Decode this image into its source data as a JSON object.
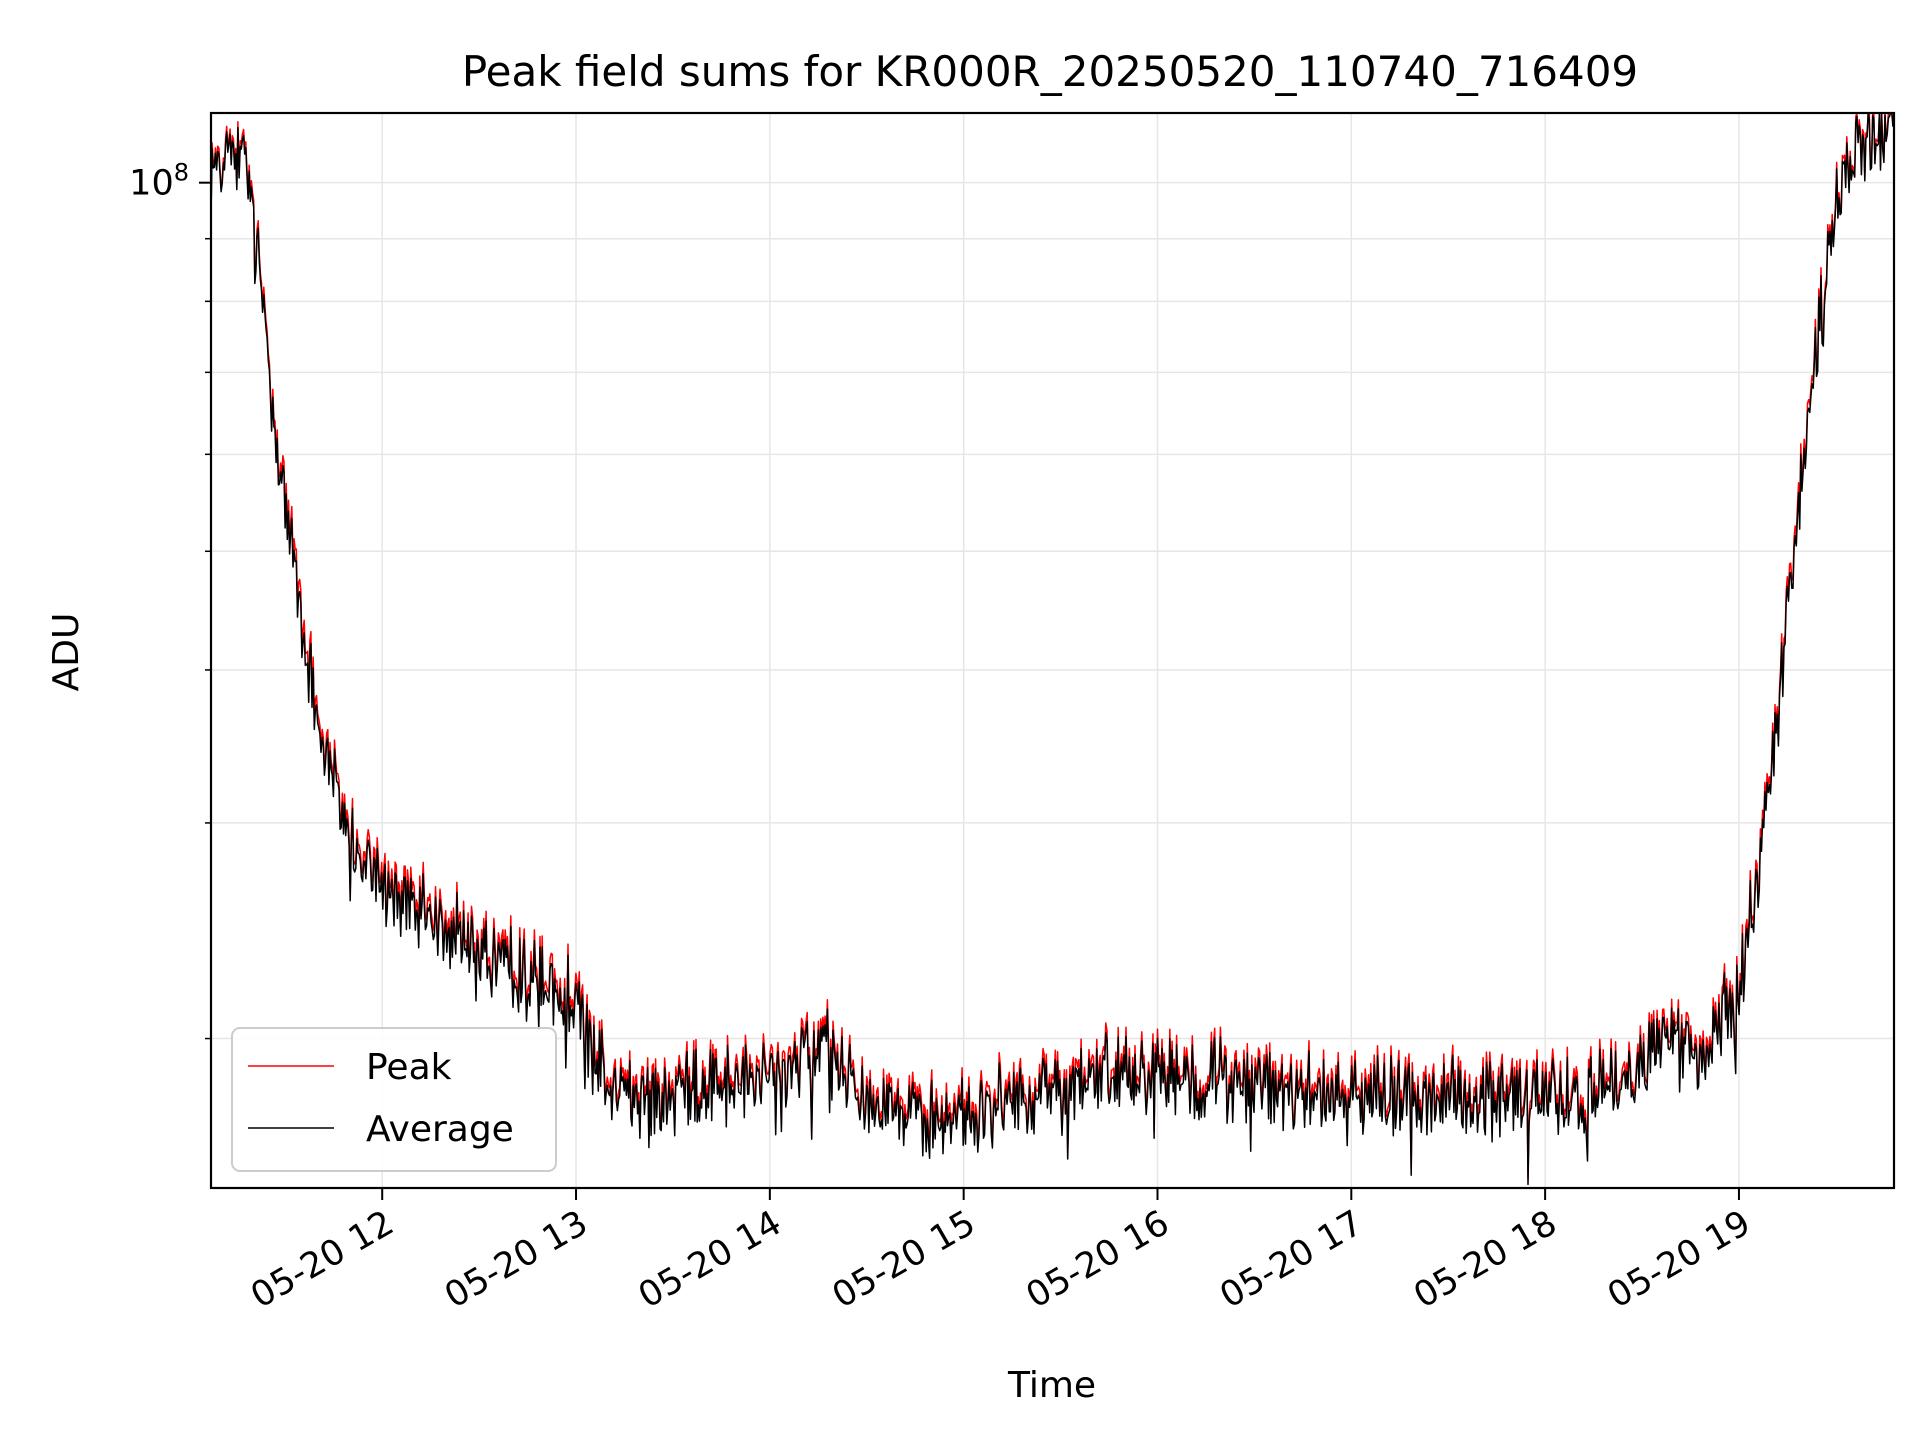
{
  "chart_data": {
    "type": "line",
    "title": "Peak field sums for KR000R_20250520_110740_716409",
    "xlabel": "Time",
    "ylabel": "ADU",
    "x_range": [
      "2025-05-20 11:07",
      "2025-05-20 19:48"
    ],
    "x_ticks": [
      "05-20 12",
      "05-20 13",
      "05-20 14",
      "05-20 15",
      "05-20 16",
      "05-20 17",
      "05-20 18",
      "05-20 19"
    ],
    "x_tick_hours": [
      12,
      13,
      14,
      15,
      16,
      17,
      18,
      19
    ],
    "y_scale": "log",
    "y_range": [
      15100000,
      114000000
    ],
    "y_major_tick": {
      "label": "10",
      "exponent": "8",
      "value": 100000000
    },
    "y_minor_ticks": [
      20000000,
      30000000,
      40000000,
      50000000,
      60000000,
      70000000,
      80000000,
      90000000
    ],
    "grid": true,
    "legend": {
      "placement": "lower-left"
    },
    "series": [
      {
        "name": "Peak",
        "color": "#ff0000",
        "hours": [
          11.12,
          11.2,
          11.3,
          11.4,
          11.5,
          11.6,
          11.7,
          11.8,
          11.9,
          12.0,
          12.2,
          12.4,
          12.6,
          12.8,
          13.0,
          13.1,
          13.3,
          13.5,
          13.7,
          13.9,
          14.1,
          14.3,
          14.5,
          14.7,
          14.9,
          15.1,
          15.3,
          15.5,
          15.7,
          15.9,
          16.1,
          16.3,
          16.5,
          16.7,
          16.9,
          17.1,
          17.3,
          17.5,
          17.7,
          17.9,
          18.1,
          18.3,
          18.5,
          18.6,
          18.7,
          18.8,
          18.9,
          19.0,
          19.1,
          19.2,
          19.3,
          19.4,
          19.5,
          19.6,
          19.7,
          19.8
        ],
        "values": [
          103000000,
          108000000,
          104000000,
          76000000,
          55000000,
          43000000,
          35000000,
          31000000,
          28500000,
          27000000,
          25800000,
          24600000,
          23500000,
          22500000,
          22000000,
          19500000,
          18200000,
          18400000,
          18700000,
          18600000,
          19200000,
          19900000,
          18400000,
          17600000,
          17400000,
          17800000,
          18200000,
          18500000,
          18900000,
          19200000,
          19000000,
          18900000,
          18600000,
          18400000,
          18300000,
          18200000,
          18300000,
          18200000,
          18100000,
          18300000,
          18100000,
          18400000,
          19300000,
          20600000,
          20200000,
          19300000,
          20800000,
          21800000,
          28500000,
          37000000,
          54000000,
          74000000,
          97000000,
          107000000,
          110000000,
          113000000
        ]
      },
      {
        "name": "Average",
        "color": "#000000",
        "hours": [
          11.12,
          11.2,
          11.3,
          11.4,
          11.5,
          11.6,
          11.7,
          11.8,
          11.9,
          12.0,
          12.2,
          12.4,
          12.6,
          12.8,
          13.0,
          13.1,
          13.3,
          13.5,
          13.7,
          13.9,
          14.1,
          14.3,
          14.5,
          14.7,
          14.9,
          15.1,
          15.3,
          15.5,
          15.7,
          15.9,
          16.1,
          16.3,
          16.5,
          16.7,
          16.9,
          17.1,
          17.3,
          17.5,
          17.7,
          17.9,
          18.1,
          18.3,
          18.5,
          18.6,
          18.7,
          18.8,
          18.9,
          19.0,
          19.1,
          19.2,
          19.3,
          19.4,
          19.5,
          19.6,
          19.7,
          19.8
        ],
        "values": [
          102000000,
          107000000,
          103000000,
          75000000,
          54000000,
          42000000,
          34500000,
          30500000,
          28000000,
          26500000,
          25300000,
          24200000,
          23100000,
          22100000,
          21600000,
          19200000,
          17900000,
          18100000,
          18400000,
          18300000,
          18900000,
          19600000,
          18100000,
          17300000,
          17100000,
          17500000,
          17900000,
          18200000,
          18600000,
          18900000,
          18700000,
          18600000,
          18300000,
          18100000,
          18000000,
          17900000,
          18000000,
          17900000,
          17800000,
          18000000,
          17800000,
          18100000,
          19000000,
          20300000,
          19900000,
          19000000,
          20500000,
          21500000,
          28000000,
          36500000,
          53000000,
          73000000,
          96000000,
          106000000,
          109000000,
          112000000
        ]
      }
    ]
  }
}
